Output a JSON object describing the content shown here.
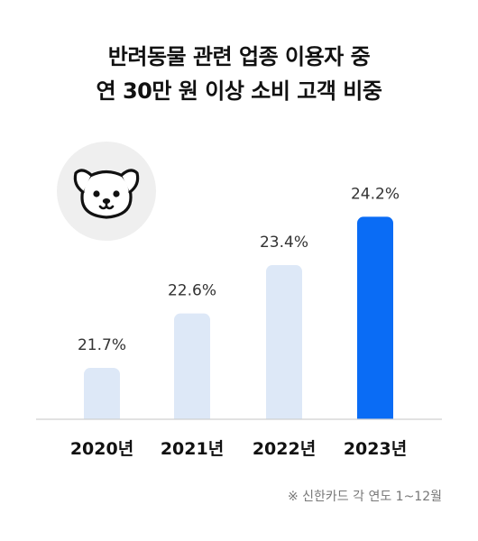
{
  "title": {
    "line1": "반려동물 관련 업종 이용자 중",
    "line2": "연 30만 원 이상 소비 고객 비중"
  },
  "note": "※ 신한카드 각 연도 1~12월",
  "icon": "dog-face-icon",
  "colors": {
    "bar": "#dde8f7",
    "highlight": "#0a6cf5",
    "axis": "#d0d0d0",
    "label": "#333333",
    "tick": "#111111"
  },
  "chart_data": {
    "type": "bar",
    "categories": [
      "2020년",
      "2021년",
      "2022년",
      "2023년"
    ],
    "values": [
      21.7,
      22.6,
      23.4,
      24.2
    ],
    "value_labels": [
      "21.7%",
      "22.6%",
      "23.4%",
      "24.2%"
    ],
    "unit": "%",
    "highlight_index": 3,
    "ylim": [
      20.85,
      24.4
    ],
    "grid": false
  }
}
